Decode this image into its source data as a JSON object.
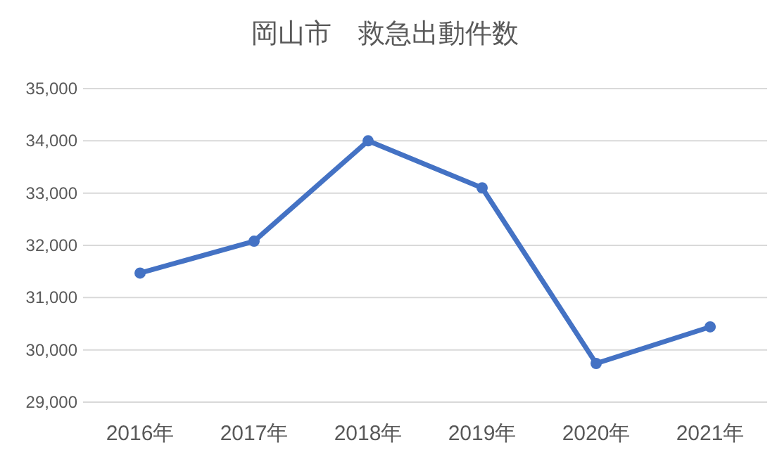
{
  "chart_data": {
    "type": "line",
    "title": "岡山市　救急出動件数",
    "categories": [
      "2016年",
      "2017年",
      "2018年",
      "2019年",
      "2020年",
      "2021年"
    ],
    "series": [
      {
        "color": "#4472c4",
        "values": [
          31470,
          32080,
          34000,
          33100,
          29740,
          30440
        ]
      }
    ],
    "ylim": [
      29000,
      35000
    ],
    "yticks": [
      {
        "value": 29000,
        "label": "29,000"
      },
      {
        "value": 30000,
        "label": "30,000"
      },
      {
        "value": 31000,
        "label": "31,000"
      },
      {
        "value": 32000,
        "label": "32,000"
      },
      {
        "value": 33000,
        "label": "33,000"
      },
      {
        "value": 34000,
        "label": "34,000"
      },
      {
        "value": 35000,
        "label": "35,000"
      }
    ],
    "grid": "y",
    "marker": "circle",
    "line_style": "solid"
  }
}
